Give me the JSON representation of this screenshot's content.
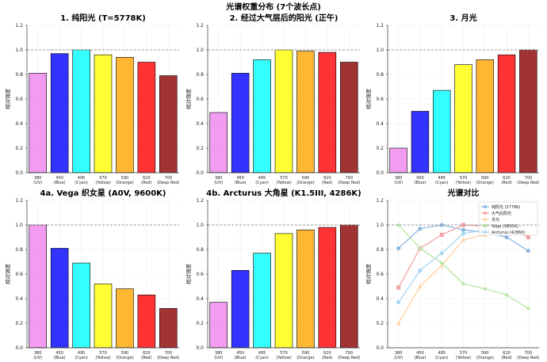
{
  "figure": {
    "suptitle": "光谱权重分布 (7个波长点)"
  },
  "chart_data": [
    {
      "type": "bar",
      "title": "1. 纯阳光 (T=5778K)",
      "ylabel": "相对强度",
      "ylim": [
        0,
        1.2
      ],
      "yticks": [
        "0.0",
        "0.2",
        "0.4",
        "0.6",
        "0.8",
        "1.0",
        "1.2"
      ],
      "reference_line": 1.0,
      "grid": true,
      "categories": [
        "380\n(UV)",
        "450\n(Blue)",
        "495\n(Cyan)",
        "570\n(Yellow)",
        "590\n(Orange)",
        "620\n(Red)",
        "700\n(Deep Red)"
      ],
      "values": [
        0.81,
        0.97,
        1.0,
        0.96,
        0.94,
        0.9,
        0.79
      ]
    },
    {
      "type": "bar",
      "title": "2. 经过大气层后的阳光 (正午)",
      "ylabel": "相对强度",
      "ylim": [
        0,
        1.2
      ],
      "yticks": [
        "0.0",
        "0.2",
        "0.4",
        "0.6",
        "0.8",
        "1.0",
        "1.2"
      ],
      "reference_line": 1.0,
      "grid": true,
      "categories": [
        "380\n(UV)",
        "450\n(Blue)",
        "495\n(Cyan)",
        "570\n(Yellow)",
        "590\n(Orange)",
        "620\n(Red)",
        "700\n(Deep Red)"
      ],
      "values": [
        0.49,
        0.81,
        0.92,
        1.0,
        0.99,
        0.98,
        0.9
      ]
    },
    {
      "type": "bar",
      "title": "3. 月光",
      "ylabel": "相对强度",
      "ylim": [
        0,
        1.2
      ],
      "yticks": [
        "0.0",
        "0.2",
        "0.4",
        "0.6",
        "0.8",
        "1.0",
        "1.2"
      ],
      "reference_line": 1.0,
      "grid": true,
      "categories": [
        "380\n(UV)",
        "450\n(Blue)",
        "495\n(Cyan)",
        "570\n(Yellow)",
        "590\n(Orange)",
        "620\n(Red)",
        "700\n(Deep Red)"
      ],
      "values": [
        0.2,
        0.5,
        0.67,
        0.88,
        0.92,
        0.96,
        1.0
      ]
    },
    {
      "type": "bar",
      "title": "4a. Vega 织女星 (A0V, 9600K)",
      "ylabel": "相对强度",
      "ylim": [
        0,
        1.2
      ],
      "yticks": [
        "0.0",
        "0.2",
        "0.4",
        "0.6",
        "0.8",
        "1.0",
        "1.2"
      ],
      "reference_line": 1.0,
      "grid": true,
      "categories": [
        "380\n(UV)",
        "450\n(Blue)",
        "495\n(Cyan)",
        "570\n(Yellow)",
        "590\n(Orange)",
        "620\n(Red)",
        "700\n(Deep Red)"
      ],
      "values": [
        1.0,
        0.81,
        0.69,
        0.52,
        0.48,
        0.43,
        0.32
      ]
    },
    {
      "type": "bar",
      "title": "4b. Arcturus 大角星 (K1.5III, 4286K)",
      "ylabel": "相对强度",
      "ylim": [
        0,
        1.2
      ],
      "yticks": [
        "0.0",
        "0.2",
        "0.4",
        "0.6",
        "0.8",
        "1.0",
        "1.2"
      ],
      "reference_line": 1.0,
      "grid": true,
      "categories": [
        "380\n(UV)",
        "450\n(Blue)",
        "495\n(Cyan)",
        "570\n(Yellow)",
        "590\n(Orange)",
        "620\n(Red)",
        "700\n(Deep Red)"
      ],
      "values": [
        0.37,
        0.63,
        0.77,
        0.93,
        0.96,
        0.98,
        1.0
      ]
    },
    {
      "type": "line",
      "title": "光谱对比",
      "ylabel": "相对强度",
      "ylim": [
        0,
        1.2
      ],
      "yticks": [
        "0.0",
        "0.2",
        "0.4",
        "0.6",
        "0.8",
        "1.0",
        "1.2"
      ],
      "reference_line": 1.0,
      "grid": true,
      "legend_position": "top-right",
      "categories": [
        "380\n(UV)",
        "450\n(Blue)",
        "495\n(Cyan)",
        "570\n(Yellow)",
        "590\n(Orange)",
        "620\n(Red)",
        "700\n(Deep Red)"
      ],
      "series": [
        {
          "name": "纯阳光 (5778K)",
          "color": "#8fb7e3",
          "marker": "circle",
          "values": [
            0.81,
            0.97,
            1.0,
            0.96,
            0.94,
            0.9,
            0.79
          ]
        },
        {
          "name": "大气后阳光",
          "color": "#f2a3a6",
          "marker": "square",
          "values": [
            0.49,
            0.81,
            0.92,
            1.0,
            0.99,
            0.98,
            0.9
          ]
        },
        {
          "name": "月光",
          "color": "#ffd3a0",
          "marker": "triangle",
          "values": [
            0.2,
            0.5,
            0.67,
            0.88,
            0.92,
            0.96,
            1.0
          ]
        },
        {
          "name": "Vega (9600K)",
          "color": "#b8e6a6",
          "marker": "diamond",
          "values": [
            1.0,
            0.81,
            0.69,
            0.52,
            0.48,
            0.43,
            0.32
          ]
        },
        {
          "name": "Arcturus (4286K)",
          "color": "#a9d8f2",
          "marker": "circle",
          "values": [
            0.37,
            0.63,
            0.77,
            0.93,
            0.96,
            0.98,
            1.0
          ]
        }
      ]
    }
  ],
  "colors": {
    "bars": [
      "#ee82ee",
      "#0000ff",
      "#00ffff",
      "#ffff00",
      "#ffa500",
      "#ff0000",
      "#8b0000"
    ],
    "bar_edge": "#000000",
    "reference_line": "#999999",
    "grid": "#eeeeee"
  }
}
